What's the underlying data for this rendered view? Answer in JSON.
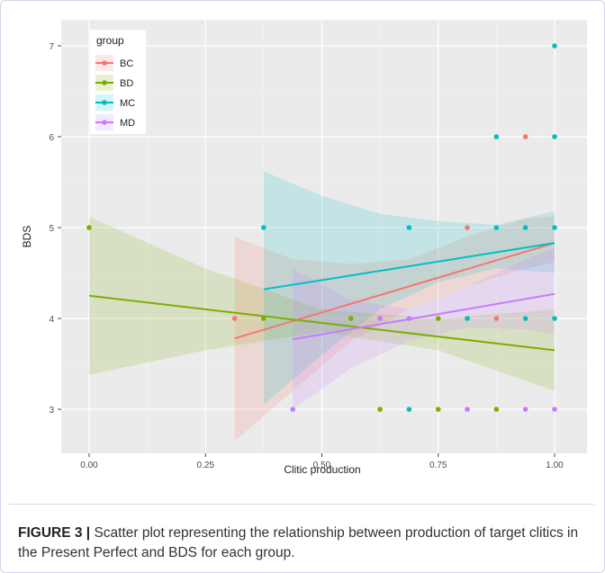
{
  "chart_data": {
    "type": "scatter",
    "xlabel": "Clitic production",
    "ylabel": "BDS",
    "xlim": [
      -0.05,
      1.05
    ],
    "ylim": [
      2.5,
      7.3
    ],
    "x_ticks": [
      "0.00",
      "0.25",
      "0.50",
      "0.75",
      "1.00"
    ],
    "y_ticks": [
      "3",
      "4",
      "5",
      "6",
      "7"
    ],
    "grid": true,
    "legend": {
      "title": "group",
      "placement": "top-left"
    },
    "series": [
      {
        "name": "BC",
        "color": "#F8766D",
        "points": [
          [
            0.3125,
            4
          ],
          [
            0.8125,
            5
          ],
          [
            0.875,
            4
          ],
          [
            0.9375,
            6
          ]
        ],
        "fit": {
          "x": [
            0.3125,
            1.0
          ],
          "y": [
            3.78,
            4.83
          ]
        },
        "band": {
          "x": [
            0.3125,
            0.4375,
            0.5625,
            0.6875,
            0.8125,
            0.9375,
            1.0
          ],
          "lower": [
            2.65,
            3.2,
            3.75,
            4.1,
            4.35,
            4.55,
            4.62
          ],
          "upper": [
            4.9,
            4.65,
            4.6,
            4.65,
            4.9,
            5.1,
            5.12
          ]
        }
      },
      {
        "name": "BD",
        "color": "#7CAE00",
        "points": [
          [
            0.0,
            5
          ],
          [
            0.375,
            4
          ],
          [
            0.5625,
            4
          ],
          [
            0.625,
            3
          ],
          [
            0.75,
            4
          ],
          [
            0.75,
            3
          ],
          [
            0.875,
            3
          ]
        ],
        "fit": {
          "x": [
            0.0,
            1.0
          ],
          "y": [
            4.25,
            3.65
          ]
        },
        "band": {
          "x": [
            0.0,
            0.25,
            0.5,
            0.75,
            1.0
          ],
          "lower": [
            3.38,
            3.65,
            3.85,
            3.65,
            3.2
          ],
          "upper": [
            5.12,
            4.55,
            4.1,
            4.0,
            4.1
          ]
        }
      },
      {
        "name": "MC",
        "color": "#00BFC4",
        "points": [
          [
            0.375,
            5
          ],
          [
            0.6875,
            5
          ],
          [
            0.6875,
            3
          ],
          [
            0.8125,
            4
          ],
          [
            0.875,
            6
          ],
          [
            0.875,
            5
          ],
          [
            0.9375,
            5
          ],
          [
            0.9375,
            4
          ],
          [
            1.0,
            7
          ],
          [
            1.0,
            6
          ],
          [
            1.0,
            5
          ],
          [
            1.0,
            4
          ]
        ],
        "fit": {
          "x": [
            0.375,
            1.0
          ],
          "y": [
            4.32,
            4.83
          ]
        },
        "band": {
          "x": [
            0.375,
            0.5,
            0.625,
            0.75,
            0.875,
            1.0
          ],
          "lower": [
            3.05,
            3.6,
            4.1,
            4.4,
            4.55,
            4.5
          ],
          "upper": [
            5.62,
            5.35,
            5.15,
            5.07,
            5.03,
            5.18
          ]
        }
      },
      {
        "name": "MD",
        "color": "#C77CFF",
        "points": [
          [
            0.4375,
            3
          ],
          [
            0.625,
            4
          ],
          [
            0.6875,
            4
          ],
          [
            0.8125,
            3
          ],
          [
            0.9375,
            3
          ],
          [
            1.0,
            3
          ]
        ],
        "fit": {
          "x": [
            0.4375,
            1.0
          ],
          "y": [
            3.77,
            4.27
          ]
        },
        "band": {
          "x": [
            0.4375,
            0.5625,
            0.6875,
            0.8125,
            0.9375,
            1.0
          ],
          "lower": [
            3.0,
            3.45,
            3.75,
            3.9,
            3.88,
            3.82
          ],
          "upper": [
            4.55,
            4.2,
            4.1,
            4.35,
            4.65,
            4.78
          ]
        }
      }
    ]
  },
  "caption": {
    "label": "FIGURE 3 |",
    "text": "Scatter plot representing the relationship between production of target clitics in the Present Perfect and BDS for each group."
  }
}
